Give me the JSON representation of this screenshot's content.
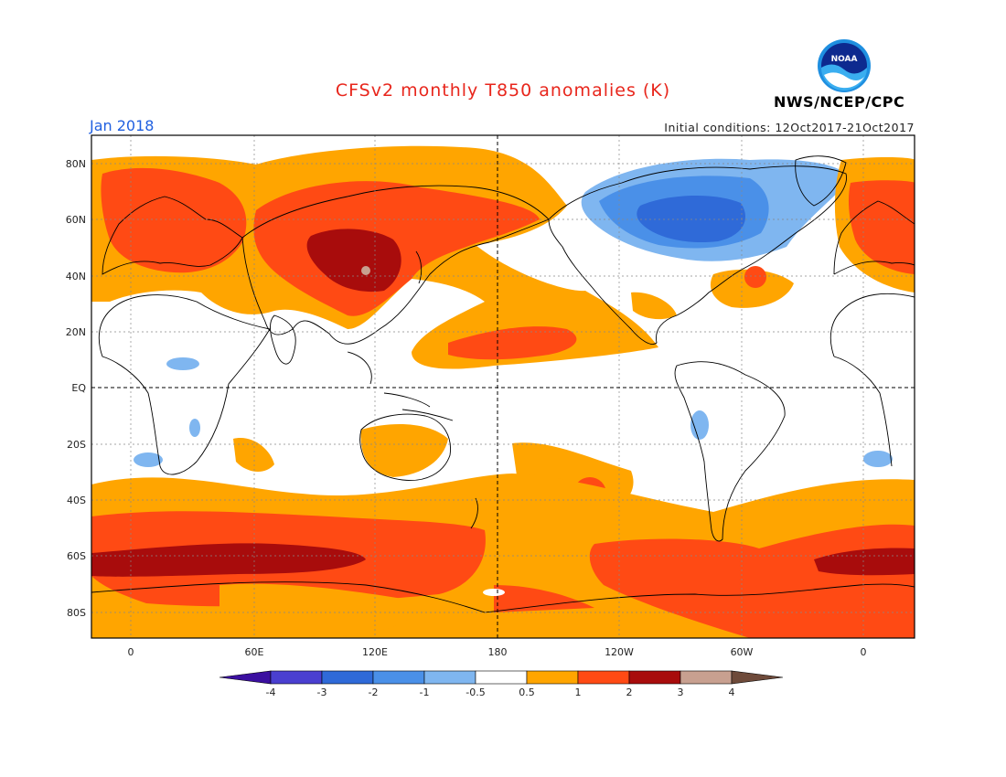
{
  "header": {
    "title": "CFSv2 monthly T850 anomalies (K)",
    "month": "Jan 2018",
    "initial_conditions": "Initial conditions: 12Oct2017-21Oct2017",
    "agency": "NWS/NCEP/CPC",
    "logo_text": "NOAA"
  },
  "map": {
    "lat_labels": [
      "80N",
      "60N",
      "40N",
      "20N",
      "EQ",
      "20S",
      "40S",
      "60S",
      "80S"
    ],
    "lon_labels": [
      "0",
      "60E",
      "120E",
      "180",
      "120W",
      "60W",
      "0"
    ]
  },
  "colorbar": {
    "labels": [
      "-4",
      "-3",
      "-2",
      "-1",
      "-0.5",
      "0.5",
      "1",
      "2",
      "3",
      "4"
    ],
    "colors": [
      "#3b0fa0",
      "#4a3fd0",
      "#2f6ad8",
      "#4a90e8",
      "#7fb6f0",
      "#ffffff",
      "#ffa500",
      "#ff4a14",
      "#a80c0c",
      "#c8a090",
      "#6e4a3a"
    ]
  }
}
